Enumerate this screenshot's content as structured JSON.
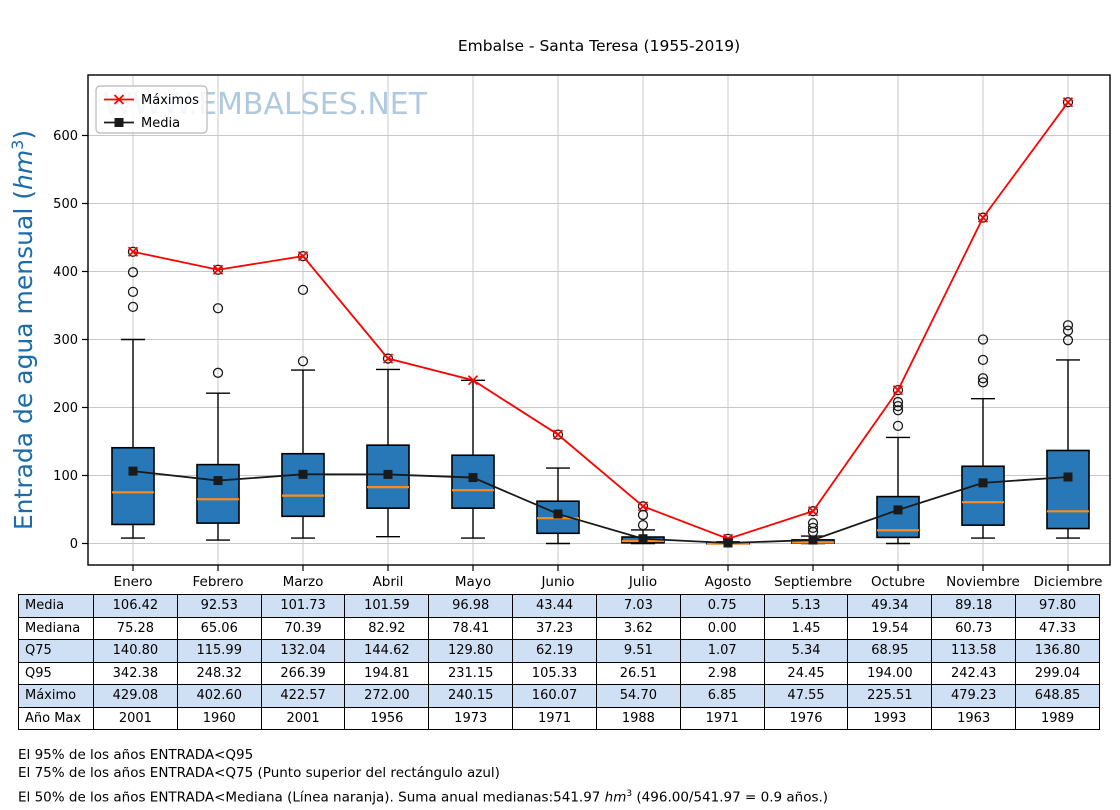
{
  "title": "Embalse - Santa Teresa (1955-2019)",
  "watermark": "WWW.EMBALSES.NET",
  "y_axis": {
    "label_prefix": "Entrada de agua mensual (",
    "label_unit": "hm",
    "label_exponent": "3",
    "label_suffix": ")",
    "ticks": [
      0,
      100,
      200,
      300,
      400,
      500,
      600
    ]
  },
  "legend": {
    "maximos": "Máximos",
    "media": "Media"
  },
  "chart_data": {
    "type": "boxplot-with-lines",
    "title": "Embalse - Santa Teresa (1955-2019)",
    "xlabel": "",
    "ylabel": "Entrada de agua mensual (hm3)",
    "ylim": [
      0,
      650
    ],
    "grid": true,
    "legend_position": "upper-left",
    "categories": [
      "Enero",
      "Febrero",
      "Marzo",
      "Abril",
      "Mayo",
      "Junio",
      "Julio",
      "Agosto",
      "Septiembre",
      "Octubre",
      "Noviembre",
      "Diciembre"
    ],
    "series": [
      {
        "name": "Máximos",
        "type": "line",
        "marker": "x",
        "color": "#ff0000",
        "values": [
          429.08,
          402.6,
          422.57,
          272.0,
          240.15,
          160.07,
          54.7,
          6.85,
          47.55,
          225.51,
          479.23,
          648.85
        ]
      },
      {
        "name": "Media",
        "type": "line",
        "marker": "square",
        "color": "#1a1a1a",
        "values": [
          106.42,
          92.53,
          101.73,
          101.59,
          96.98,
          43.44,
          7.03,
          0.75,
          5.13,
          49.34,
          89.18,
          97.8
        ]
      }
    ],
    "boxplot": {
      "fill_color": "#2878b8",
      "median_color": "#ff8c1a",
      "median": [
        75.28,
        65.06,
        70.39,
        82.92,
        78.41,
        37.23,
        3.62,
        0.0,
        1.45,
        19.54,
        60.73,
        47.33
      ],
      "q25": [
        28,
        30,
        40,
        52,
        52,
        15,
        1,
        0,
        0.5,
        9,
        27,
        22
      ],
      "q75": [
        140.8,
        115.99,
        132.04,
        144.62,
        129.8,
        62.19,
        9.51,
        1.07,
        5.34,
        68.95,
        113.58,
        136.8
      ],
      "q95": [
        342.38,
        248.32,
        266.39,
        194.81,
        231.15,
        105.33,
        26.51,
        2.98,
        24.45,
        194.0,
        242.43,
        299.04
      ],
      "whisker_low": [
        8,
        5,
        8,
        10,
        8,
        0,
        0,
        0,
        0,
        0,
        8,
        8
      ],
      "whisker_high": [
        300,
        221,
        255,
        256,
        240,
        111,
        20,
        2.5,
        11,
        156,
        213,
        270
      ],
      "outliers": [
        [
          348,
          370,
          399,
          429.08
        ],
        [
          251,
          346,
          402.6
        ],
        [
          268,
          373,
          422.57
        ],
        [
          272.0
        ],
        [],
        [
          160.07
        ],
        [
          27,
          42,
          54.7
        ],
        [
          6.85
        ],
        [
          17,
          23,
          30,
          47.55
        ],
        [
          173,
          196,
          202,
          208,
          225.51
        ],
        [
          237,
          243,
          270,
          300,
          479.23
        ],
        [
          299,
          313,
          321,
          648.85
        ]
      ]
    }
  },
  "table": {
    "row_labels": [
      "Media",
      "Mediana",
      "Q75",
      "Q95",
      "Máximo",
      "Año Max"
    ],
    "rows": [
      [
        "106.42",
        "92.53",
        "101.73",
        "101.59",
        "96.98",
        "43.44",
        "7.03",
        "0.75",
        "5.13",
        "49.34",
        "89.18",
        "97.80"
      ],
      [
        "75.28",
        "65.06",
        "70.39",
        "82.92",
        "78.41",
        "37.23",
        "3.62",
        "0.00",
        "1.45",
        "19.54",
        "60.73",
        "47.33"
      ],
      [
        "140.80",
        "115.99",
        "132.04",
        "144.62",
        "129.80",
        "62.19",
        "9.51",
        "1.07",
        "5.34",
        "68.95",
        "113.58",
        "136.80"
      ],
      [
        "342.38",
        "248.32",
        "266.39",
        "194.81",
        "231.15",
        "105.33",
        "26.51",
        "2.98",
        "24.45",
        "194.00",
        "242.43",
        "299.04"
      ],
      [
        "429.08",
        "402.60",
        "422.57",
        "272.00",
        "240.15",
        "160.07",
        "54.70",
        "6.85",
        "47.55",
        "225.51",
        "479.23",
        "648.85"
      ],
      [
        "2001",
        "1960",
        "2001",
        "1956",
        "1973",
        "1971",
        "1988",
        "1971",
        "1976",
        "1993",
        "1963",
        "1989"
      ]
    ]
  },
  "footnotes": {
    "line1": "El 95% de los años ENTRADA<Q95",
    "line2": "El 75% de los años ENTRADA<Q75 (Punto superior del rectángulo azul)",
    "line3_prefix": "El 50% de los años ENTRADA<Mediana (Línea naranja). Suma anual medianas:541.97 ",
    "line3_unit": "hm",
    "line3_exponent": "3",
    "line3_suffix": " (496.00/541.97 = 0.9 años.)"
  },
  "colors": {
    "ylabel": "#1b6ca8",
    "watermark": "#6f9ec9",
    "grid": "#c8c8c8",
    "box_fill": "#2878b8",
    "median_line": "#ff8c1a",
    "maximos_line": "#ff0000",
    "media_line": "#1a1a1a",
    "table_row_blue": "#cfe0f4",
    "table_row_white": "#ffffff"
  }
}
